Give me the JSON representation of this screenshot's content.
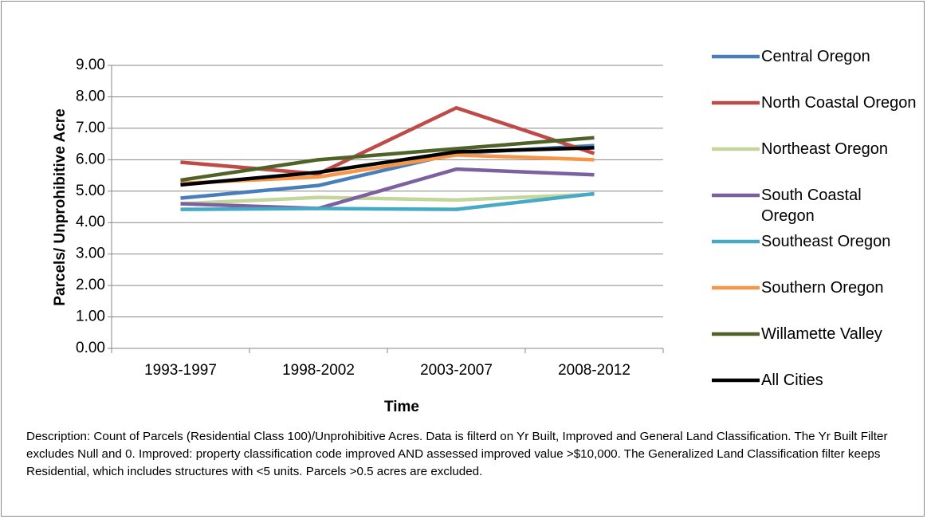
{
  "chart_data": {
    "type": "line",
    "xlabel": "Time",
    "ylabel": "Parcels/ Unprohibitive Acre",
    "categories": [
      "1993-1997",
      "1998-2002",
      "2003-2007",
      "2008-2012"
    ],
    "series": [
      {
        "name": "Central Oregon",
        "color": "#4a7ebb",
        "values": [
          4.78,
          5.18,
          6.2,
          6.45
        ]
      },
      {
        "name": "North Coastal Oregon",
        "color": "#be4b48",
        "values": [
          5.92,
          5.55,
          7.65,
          6.2
        ]
      },
      {
        "name": "Northeast Oregon",
        "color": "#c3d69b",
        "values": [
          4.6,
          4.8,
          4.72,
          4.9
        ]
      },
      {
        "name": "South Coastal Oregon",
        "color": "#7d60a0",
        "values": [
          4.6,
          4.45,
          5.7,
          5.52
        ]
      },
      {
        "name": "Southeast Oregon",
        "color": "#46aac5",
        "values": [
          4.42,
          4.45,
          4.42,
          4.92
        ]
      },
      {
        "name": "Southern Oregon",
        "color": "#f79646",
        "values": [
          5.25,
          5.45,
          6.15,
          6.0
        ]
      },
      {
        "name": "Willamette Valley",
        "color": "#4f6228",
        "values": [
          5.35,
          6.0,
          6.35,
          6.7
        ]
      },
      {
        "name": "All Cities",
        "color": "#000000",
        "values": [
          5.2,
          5.6,
          6.25,
          6.38
        ]
      }
    ],
    "ylim": [
      0,
      9
    ],
    "yticks": [
      {
        "value": 0,
        "label": "0.00"
      },
      {
        "value": 1,
        "label": "1.00"
      },
      {
        "value": 2,
        "label": "2.00"
      },
      {
        "value": 3,
        "label": "3.00"
      },
      {
        "value": 4,
        "label": "4.00"
      },
      {
        "value": 5,
        "label": "5.00"
      },
      {
        "value": 6,
        "label": "6.00"
      },
      {
        "value": 7,
        "label": "7.00"
      },
      {
        "value": 8,
        "label": "8.00"
      },
      {
        "value": 9,
        "label": "9.00"
      }
    ],
    "grid": true,
    "legend": "right",
    "description": "Description: Count of Parcels (Residential Class 100)/Unprohibitive Acres. Data is filterd on Yr Built, Improved and General Land Classification. The Yr Built Filter excludes Null and 0.  Improved: property classification code improved AND assessed improved value >$10,000.  The Generalized Land Classification filter keeps Residential, which includes structures with <5 units.  Parcels >0.5 acres are excluded."
  }
}
